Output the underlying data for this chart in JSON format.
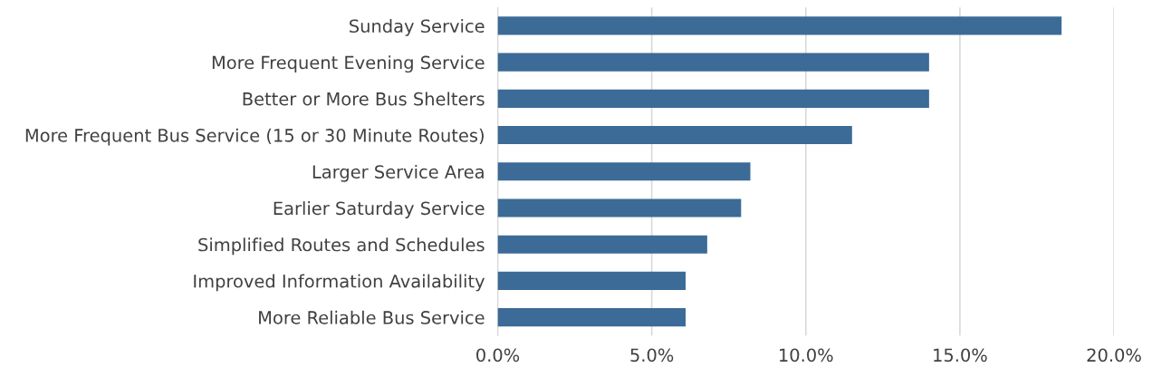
{
  "chart_data": {
    "type": "bar",
    "orientation": "horizontal",
    "categories": [
      "Sunday Service",
      "More Frequent Evening Service",
      "Better or More Bus Shelters",
      "More Frequent Bus Service (15 or 30 Minute Routes)",
      "Larger Service Area",
      "Earlier Saturday Service",
      "Simplified Routes and Schedules",
      "Improved Information Availability",
      "More Reliable Bus Service"
    ],
    "values": [
      18.3,
      14.0,
      14.0,
      11.5,
      8.2,
      7.9,
      6.8,
      6.1,
      6.1
    ],
    "color": "#3b6b96",
    "xlim": [
      0,
      20
    ],
    "xticks": [
      {
        "value": 0,
        "label": "0.0%"
      },
      {
        "value": 5,
        "label": "5.0%"
      },
      {
        "value": 10,
        "label": "10.0%"
      },
      {
        "value": 15,
        "label": "15.0%"
      },
      {
        "value": 20,
        "label": "20.0%"
      }
    ],
    "grid": "x",
    "legend": false
  }
}
